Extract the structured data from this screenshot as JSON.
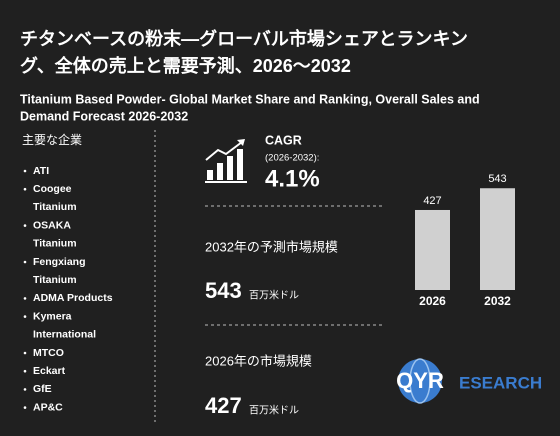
{
  "header": {
    "title_lines": [
      "チタンベースの粉末—グローバル市場シェアとランキン",
      "グ、全体の売上と需要予測、2026～2032"
    ],
    "subtitle_lines": [
      "Titanium Based Powder- Global Market Share and Ranking, Overall Sales and",
      "Demand Forecast 2026-2032"
    ]
  },
  "companies": {
    "heading": "主要な企業",
    "items": [
      [
        "ATI"
      ],
      [
        "Coogee",
        "Titanium"
      ],
      [
        "OSAKA",
        "Titanium"
      ],
      [
        "Fengxiang",
        "Titanium"
      ],
      [
        "ADMA Products"
      ],
      [
        "Kymera",
        "International"
      ],
      [
        "MTCO"
      ],
      [
        "Eckart"
      ],
      [
        "GfE"
      ],
      [
        "AP&C"
      ]
    ]
  },
  "stats": {
    "cagr_label": "CAGR",
    "cagr_period": "(2026-2032):",
    "cagr_value": "4.1%",
    "forecast_label": "2032年の予測市場規模",
    "forecast_value": "543",
    "forecast_unit": "百万米ドル",
    "current_label": "2026年の市場規模",
    "current_value": "427",
    "current_unit": "百万米ドル"
  },
  "chart_data": {
    "type": "bar",
    "categories": [
      "2026",
      "2032"
    ],
    "values": [
      427,
      543
    ],
    "color": "#d0d0d0"
  },
  "logo": {
    "mark": "QYR",
    "text": "ESEARCH"
  }
}
